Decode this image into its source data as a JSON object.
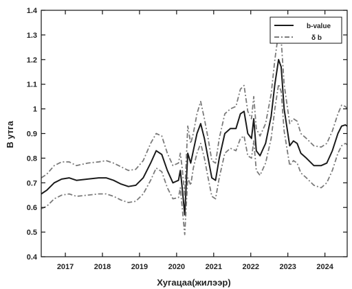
{
  "chart_data": {
    "type": "line",
    "xlabel": "Хугацаа(жилээр)",
    "ylabel": "B утга",
    "xlim": [
      2016.35,
      2024.6
    ],
    "ylim": [
      0.4,
      1.4
    ],
    "xticks": [
      2017,
      2018,
      2019,
      2020,
      2021,
      2022,
      2023,
      2024
    ],
    "yticks": [
      0.4,
      0.5,
      0.6,
      0.7,
      0.8,
      0.9,
      1.0,
      1.1,
      1.2,
      1.3,
      1.4
    ],
    "ytick_labels": [
      "0.4",
      "0.5",
      "0.6",
      "0.7",
      "0.8",
      "0.9",
      "1",
      "1.1",
      "1.2",
      "1.3",
      "1.4"
    ],
    "grid": false,
    "legend_position": "top-right",
    "series": [
      {
        "name": "b-value",
        "style": "solid",
        "color": "#1a1a1a",
        "points": [
          [
            2016.35,
            0.655
          ],
          [
            2016.5,
            0.67
          ],
          [
            2016.7,
            0.7
          ],
          [
            2016.9,
            0.715
          ],
          [
            2017.1,
            0.72
          ],
          [
            2017.3,
            0.71
          ],
          [
            2017.6,
            0.715
          ],
          [
            2017.9,
            0.72
          ],
          [
            2018.1,
            0.72
          ],
          [
            2018.3,
            0.71
          ],
          [
            2018.5,
            0.695
          ],
          [
            2018.7,
            0.685
          ],
          [
            2018.9,
            0.69
          ],
          [
            2019.1,
            0.72
          ],
          [
            2019.3,
            0.78
          ],
          [
            2019.45,
            0.83
          ],
          [
            2019.6,
            0.815
          ],
          [
            2019.75,
            0.75
          ],
          [
            2019.9,
            0.7
          ],
          [
            2020.05,
            0.71
          ],
          [
            2020.1,
            0.75
          ],
          [
            2020.15,
            0.68
          ],
          [
            2020.22,
            0.57
          ],
          [
            2020.3,
            0.82
          ],
          [
            2020.38,
            0.78
          ],
          [
            2020.45,
            0.83
          ],
          [
            2020.55,
            0.9
          ],
          [
            2020.65,
            0.94
          ],
          [
            2020.75,
            0.88
          ],
          [
            2020.85,
            0.8
          ],
          [
            2020.95,
            0.72
          ],
          [
            2021.05,
            0.71
          ],
          [
            2021.15,
            0.8
          ],
          [
            2021.3,
            0.9
          ],
          [
            2021.45,
            0.92
          ],
          [
            2021.6,
            0.92
          ],
          [
            2021.72,
            0.98
          ],
          [
            2021.82,
            0.99
          ],
          [
            2021.92,
            0.9
          ],
          [
            2022.02,
            0.88
          ],
          [
            2022.08,
            0.96
          ],
          [
            2022.15,
            0.83
          ],
          [
            2022.25,
            0.81
          ],
          [
            2022.4,
            0.86
          ],
          [
            2022.55,
            0.97
          ],
          [
            2022.65,
            1.1
          ],
          [
            2022.75,
            1.2
          ],
          [
            2022.82,
            1.17
          ],
          [
            2022.9,
            1.0
          ],
          [
            2023.05,
            0.85
          ],
          [
            2023.15,
            0.87
          ],
          [
            2023.25,
            0.86
          ],
          [
            2023.35,
            0.82
          ],
          [
            2023.5,
            0.8
          ],
          [
            2023.7,
            0.77
          ],
          [
            2023.9,
            0.77
          ],
          [
            2024.05,
            0.78
          ],
          [
            2024.2,
            0.83
          ],
          [
            2024.35,
            0.9
          ],
          [
            2024.45,
            0.93
          ],
          [
            2024.55,
            0.935
          ],
          [
            2024.6,
            0.93
          ]
        ]
      },
      {
        "name": "δ b",
        "style": "dashdot",
        "color": "#7a7a7a",
        "points": [
          [
            2016.35,
            0.72
          ],
          [
            2016.5,
            0.735
          ],
          [
            2016.7,
            0.77
          ],
          [
            2016.9,
            0.785
          ],
          [
            2017.1,
            0.785
          ],
          [
            2017.3,
            0.77
          ],
          [
            2017.6,
            0.78
          ],
          [
            2017.9,
            0.785
          ],
          [
            2018.1,
            0.79
          ],
          [
            2018.3,
            0.78
          ],
          [
            2018.5,
            0.765
          ],
          [
            2018.7,
            0.75
          ],
          [
            2018.9,
            0.755
          ],
          [
            2019.1,
            0.79
          ],
          [
            2019.3,
            0.86
          ],
          [
            2019.45,
            0.9
          ],
          [
            2019.6,
            0.89
          ],
          [
            2019.75,
            0.82
          ],
          [
            2019.9,
            0.77
          ],
          [
            2020.05,
            0.78
          ],
          [
            2020.1,
            0.82
          ],
          [
            2020.15,
            0.76
          ],
          [
            2020.22,
            0.65
          ],
          [
            2020.3,
            0.93
          ],
          [
            2020.38,
            0.86
          ],
          [
            2020.45,
            0.9
          ],
          [
            2020.55,
            0.98
          ],
          [
            2020.65,
            1.03
          ],
          [
            2020.75,
            0.96
          ],
          [
            2020.85,
            0.88
          ],
          [
            2020.95,
            0.79
          ],
          [
            2021.05,
            0.78
          ],
          [
            2021.15,
            0.88
          ],
          [
            2021.3,
            0.98
          ],
          [
            2021.45,
            1.0
          ],
          [
            2021.6,
            1.01
          ],
          [
            2021.72,
            1.08
          ],
          [
            2021.82,
            1.095
          ],
          [
            2021.92,
            0.99
          ],
          [
            2022.02,
            0.96
          ],
          [
            2022.08,
            1.05
          ],
          [
            2022.15,
            0.92
          ],
          [
            2022.25,
            0.89
          ],
          [
            2022.4,
            0.94
          ],
          [
            2022.55,
            1.06
          ],
          [
            2022.65,
            1.2
          ],
          [
            2022.75,
            1.31
          ],
          [
            2022.82,
            1.28
          ],
          [
            2022.9,
            1.1
          ],
          [
            2023.05,
            0.94
          ],
          [
            2023.15,
            0.96
          ],
          [
            2023.25,
            0.95
          ],
          [
            2023.35,
            0.9
          ],
          [
            2023.5,
            0.88
          ],
          [
            2023.7,
            0.85
          ],
          [
            2023.9,
            0.845
          ],
          [
            2024.05,
            0.86
          ],
          [
            2024.2,
            0.91
          ],
          [
            2024.35,
            0.98
          ],
          [
            2024.45,
            1.015
          ],
          [
            2024.55,
            1.01
          ],
          [
            2024.6,
            1.0
          ]
        ]
      },
      {
        "name": "",
        "style": "dashdot",
        "color": "#7a7a7a",
        "points": [
          [
            2016.35,
            0.595
          ],
          [
            2016.5,
            0.605
          ],
          [
            2016.7,
            0.635
          ],
          [
            2016.9,
            0.65
          ],
          [
            2017.1,
            0.655
          ],
          [
            2017.3,
            0.645
          ],
          [
            2017.6,
            0.65
          ],
          [
            2017.9,
            0.655
          ],
          [
            2018.1,
            0.655
          ],
          [
            2018.3,
            0.645
          ],
          [
            2018.5,
            0.63
          ],
          [
            2018.7,
            0.62
          ],
          [
            2018.9,
            0.625
          ],
          [
            2019.1,
            0.655
          ],
          [
            2019.3,
            0.71
          ],
          [
            2019.45,
            0.76
          ],
          [
            2019.6,
            0.745
          ],
          [
            2019.75,
            0.68
          ],
          [
            2019.9,
            0.635
          ],
          [
            2020.05,
            0.64
          ],
          [
            2020.1,
            0.68
          ],
          [
            2020.15,
            0.6
          ],
          [
            2020.22,
            0.49
          ],
          [
            2020.3,
            0.72
          ],
          [
            2020.38,
            0.69
          ],
          [
            2020.45,
            0.76
          ],
          [
            2020.55,
            0.82
          ],
          [
            2020.65,
            0.86
          ],
          [
            2020.75,
            0.8
          ],
          [
            2020.85,
            0.72
          ],
          [
            2020.95,
            0.645
          ],
          [
            2021.05,
            0.635
          ],
          [
            2021.15,
            0.72
          ],
          [
            2021.3,
            0.82
          ],
          [
            2021.45,
            0.84
          ],
          [
            2021.6,
            0.83
          ],
          [
            2021.72,
            0.88
          ],
          [
            2021.82,
            0.89
          ],
          [
            2021.92,
            0.81
          ],
          [
            2022.02,
            0.8
          ],
          [
            2022.08,
            0.87
          ],
          [
            2022.15,
            0.75
          ],
          [
            2022.25,
            0.73
          ],
          [
            2022.4,
            0.78
          ],
          [
            2022.55,
            0.88
          ],
          [
            2022.65,
            1.0
          ],
          [
            2022.75,
            1.1
          ],
          [
            2022.82,
            1.07
          ],
          [
            2022.9,
            0.91
          ],
          [
            2023.05,
            0.77
          ],
          [
            2023.15,
            0.79
          ],
          [
            2023.25,
            0.78
          ],
          [
            2023.35,
            0.74
          ],
          [
            2023.5,
            0.72
          ],
          [
            2023.7,
            0.69
          ],
          [
            2023.9,
            0.68
          ],
          [
            2024.05,
            0.7
          ],
          [
            2024.2,
            0.75
          ],
          [
            2024.35,
            0.82
          ],
          [
            2024.45,
            0.85
          ],
          [
            2024.55,
            0.86
          ],
          [
            2024.6,
            0.855
          ]
        ]
      }
    ],
    "legend": [
      {
        "label": "b-value",
        "style": "solid"
      },
      {
        "label": "δ b",
        "style": "dashdot"
      }
    ]
  }
}
